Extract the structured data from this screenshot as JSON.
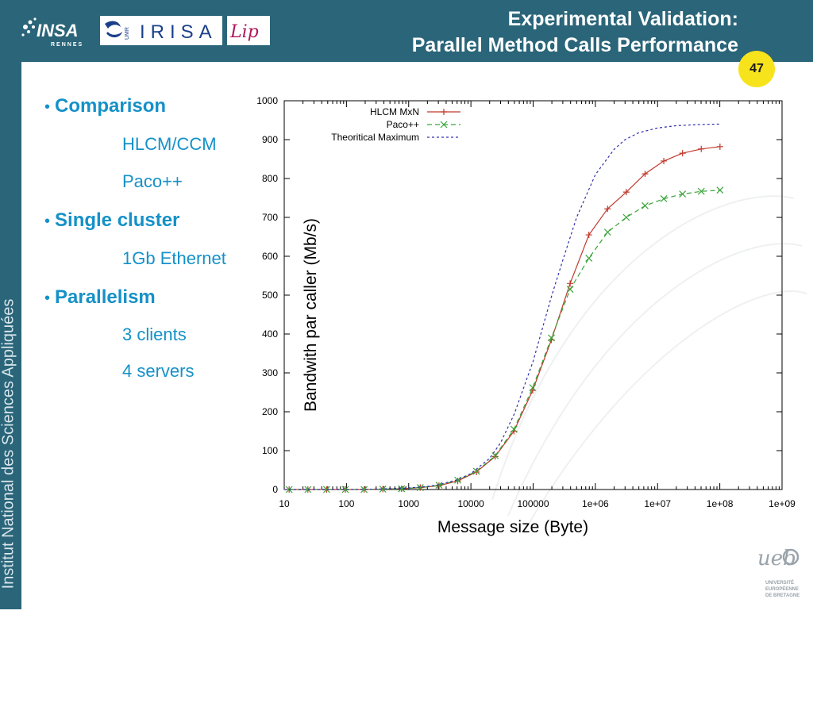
{
  "header": {
    "title_line1": "Experimental Validation:",
    "title_line2": "Parallel Method Calls Performance",
    "page_number": "47",
    "logos": {
      "insa": "INSA",
      "insa_sub": "RENNES",
      "irisa": "IRISA",
      "irisa_prefix": "UMR",
      "lip": "Lip",
      "ueb": "ueb",
      "ueb_sub": [
        "UNIVERSITÉ",
        "EUROPÉENNE",
        "DE BRETAGNE"
      ]
    }
  },
  "sidebar": {
    "text": "Institut National des Sciences Appliquées"
  },
  "bullets": {
    "comparison": {
      "label": "Comparison",
      "items": [
        "HLCM/CCM",
        "Paco++"
      ]
    },
    "single_cluster": {
      "label": "Single cluster",
      "items": [
        "1Gb Ethernet"
      ]
    },
    "parallelism": {
      "label": "Parallelism",
      "items": [
        "3 clients",
        "4 servers"
      ]
    }
  },
  "colors": {
    "band": "#2a6579",
    "accent": "#1591c8",
    "badge": "#f7e31c",
    "hlcm": "#c0392b",
    "paco": "#3aa33a",
    "theoretical": "#3030b0"
  },
  "chart_data": {
    "type": "line",
    "xscale": "log",
    "xlabel": "Message size (Byte)",
    "ylabel": "Bandwith par caller (Mb/s)",
    "xlim": [
      10,
      1000000000
    ],
    "ylim": [
      0,
      1000
    ],
    "x_ticks": [
      "10",
      "100",
      "1000",
      "10000",
      "100000",
      "1e+06",
      "1e+07",
      "1e+08",
      "1e+09"
    ],
    "y_ticks": [
      "0",
      "100",
      "200",
      "300",
      "400",
      "500",
      "600",
      "700",
      "800",
      "900",
      "1000"
    ],
    "legend_position": "top-left",
    "grid": false,
    "series": [
      {
        "name": "HLCM MxN",
        "style": "solid",
        "marker": "+",
        "x": [
          12,
          24,
          48,
          96,
          192,
          384,
          768,
          1536,
          3072,
          6144,
          12288,
          24576,
          49152,
          98304,
          196608,
          393216,
          786432,
          1572864,
          3145728,
          6291456,
          12582912,
          25165824,
          50331648,
          100663296
        ],
        "y": [
          0,
          0,
          0,
          0,
          0,
          1,
          2,
          5,
          10,
          22,
          45,
          85,
          150,
          255,
          385,
          530,
          655,
          722,
          765,
          812,
          845,
          865,
          876,
          882
        ]
      },
      {
        "name": "Paco++",
        "style": "dashed",
        "marker": "x",
        "x": [
          12,
          24,
          48,
          96,
          192,
          384,
          768,
          1536,
          3072,
          6144,
          12288,
          24576,
          49152,
          98304,
          196608,
          393216,
          786432,
          1572864,
          3145728,
          6291456,
          12582912,
          25165824,
          50331648,
          100663296
        ],
        "y": [
          0,
          0,
          0,
          0,
          0,
          1,
          2,
          5,
          11,
          24,
          47,
          87,
          155,
          262,
          390,
          515,
          595,
          662,
          700,
          730,
          748,
          760,
          767,
          770
        ]
      },
      {
        "name": "Theoritical Maximum",
        "style": "dotted",
        "marker": "none",
        "x": [
          10,
          50,
          100,
          300,
          1000,
          2000,
          3000,
          6000,
          10000,
          20000,
          30000,
          50000,
          100000,
          150000,
          200000,
          300000,
          500000,
          1000000,
          2000000,
          3000000,
          5000000,
          10000000,
          20000000,
          50000000,
          100000000
        ],
        "y": [
          0,
          0,
          0,
          1,
          4,
          8,
          12,
          25,
          41,
          80,
          120,
          195,
          330,
          430,
          500,
          590,
          700,
          810,
          875,
          900,
          918,
          930,
          936,
          939,
          940
        ]
      }
    ]
  }
}
